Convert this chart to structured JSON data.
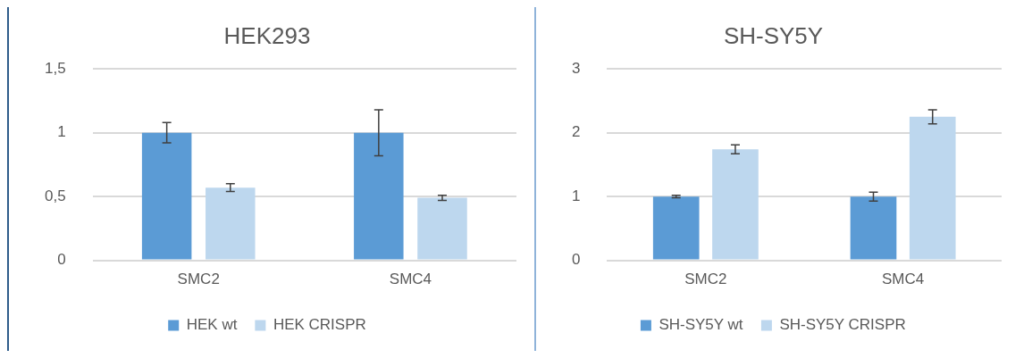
{
  "chart_data": [
    {
      "type": "bar",
      "title": "HEK293",
      "categories": [
        "SMC2",
        "SMC4"
      ],
      "series": [
        {
          "name": "HEK wt",
          "color": "#5b9bd5",
          "values": [
            1,
            1
          ],
          "errors": [
            0.08,
            0.18
          ]
        },
        {
          "name": "HEK CRISPR",
          "color": "#bdd7ee",
          "values": [
            0.57,
            0.49
          ],
          "errors": [
            0.03,
            0.02
          ]
        }
      ],
      "ylim": [
        0,
        1.5
      ],
      "yticks": [
        0,
        {
          "value": 0.5,
          "label": "0,5"
        },
        1,
        {
          "value": 1.5,
          "label": "1,5"
        }
      ],
      "grid": "y",
      "legend": "bottom"
    },
    {
      "type": "bar",
      "title": "SH-SY5Y",
      "categories": [
        "SMC2",
        "SMC4"
      ],
      "series": [
        {
          "name": "SH-SY5Y wt",
          "color": "#5b9bd5",
          "values": [
            1,
            1
          ],
          "errors": [
            0.02,
            0.07
          ]
        },
        {
          "name": "SH-SY5Y CRISPR",
          "color": "#bdd7ee",
          "values": [
            1.74,
            2.25
          ],
          "errors": [
            0.07,
            0.11
          ]
        }
      ],
      "ylim": [
        0,
        3
      ],
      "yticks": [
        0,
        1,
        2,
        3
      ],
      "grid": "y",
      "legend": "bottom"
    }
  ]
}
